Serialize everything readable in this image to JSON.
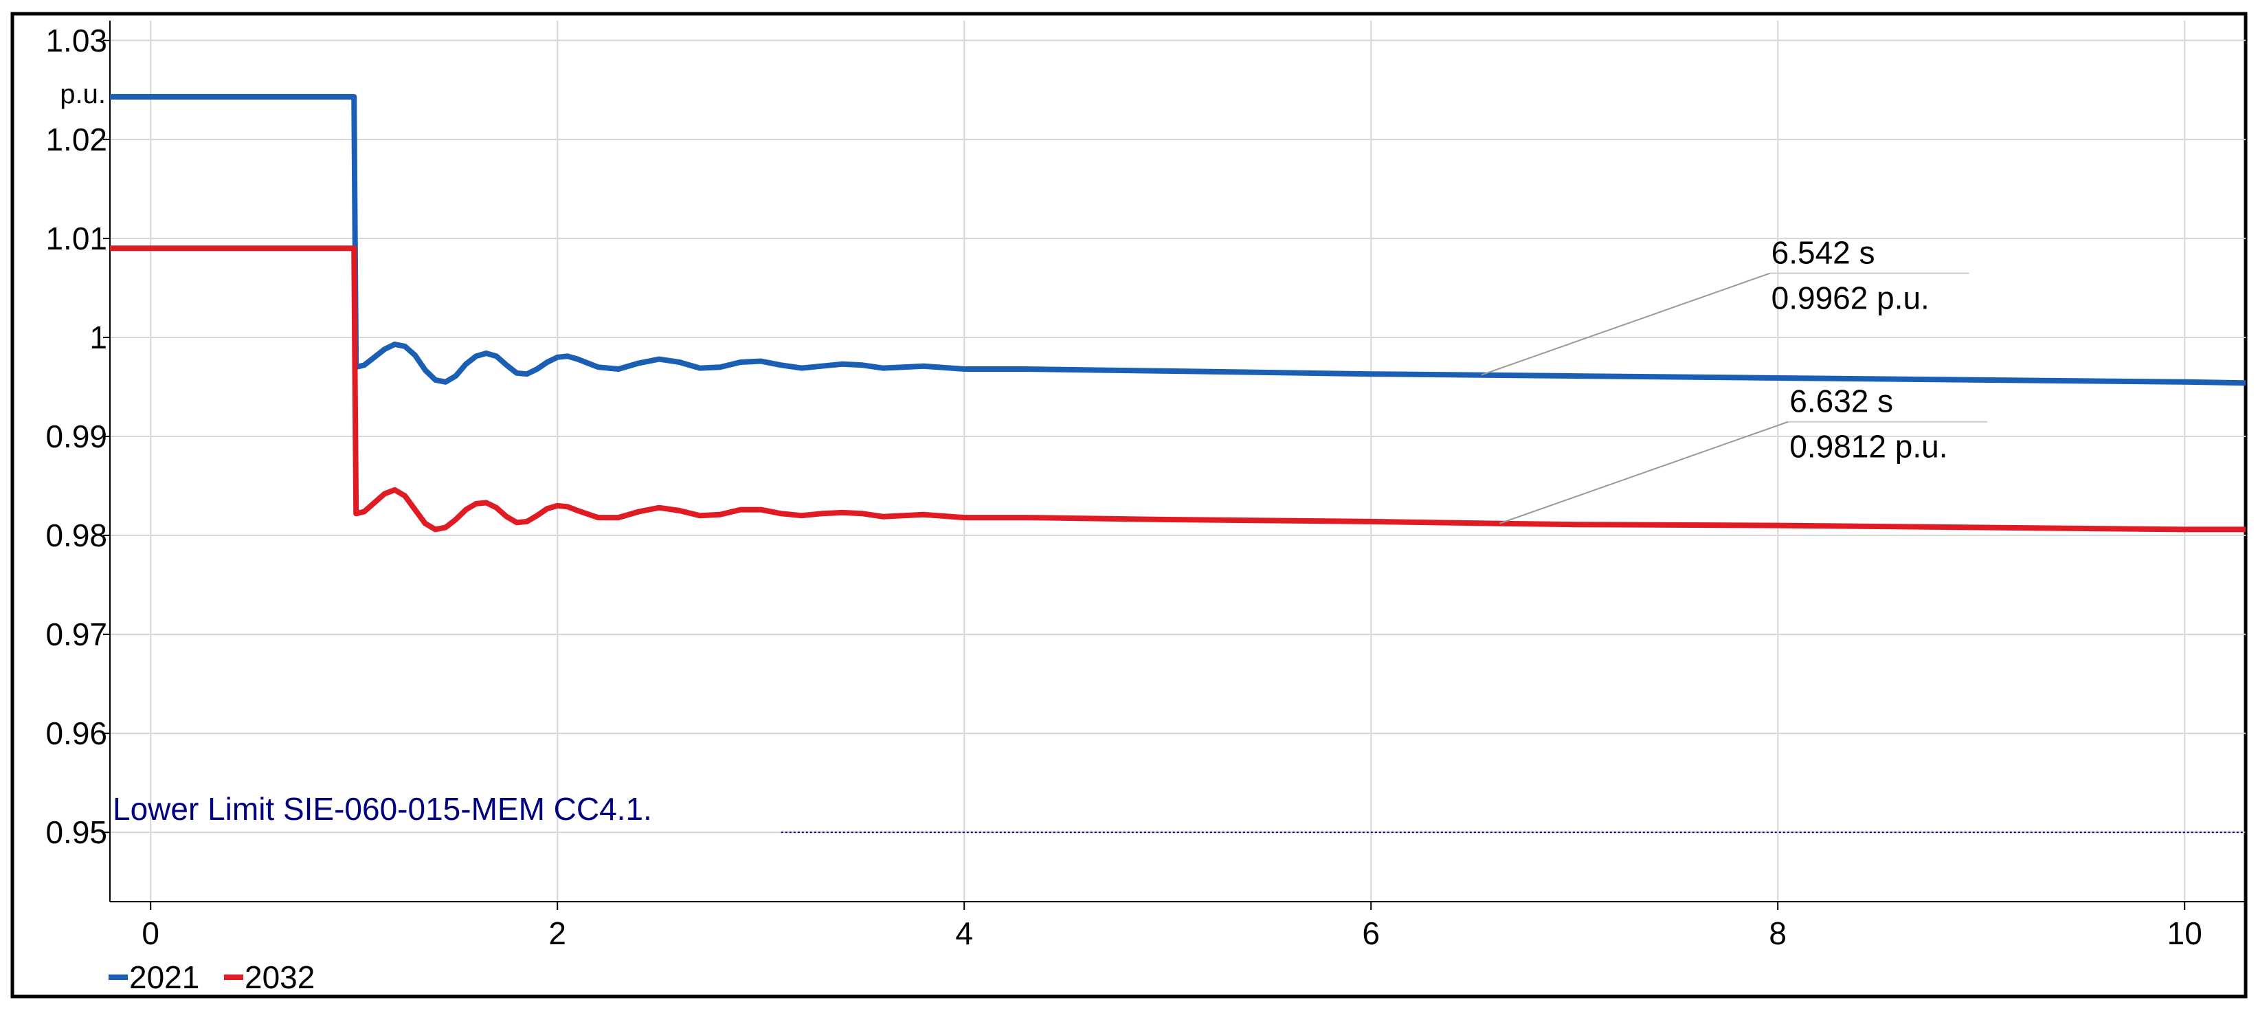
{
  "chart_data": {
    "type": "line",
    "title": "",
    "xlabel": "",
    "ylabel": "p.u.",
    "xlim": [
      -0.2,
      10.3
    ],
    "ylim": [
      0.943,
      1.032
    ],
    "x_ticks": [
      "0",
      "2",
      "4",
      "6",
      "8",
      "10"
    ],
    "x_tick_values": [
      0,
      2,
      4,
      6,
      8,
      10
    ],
    "y_ticks": [
      "0.95",
      "0.96",
      "0.97",
      "0.98",
      "0.99",
      "1",
      "1.01",
      "1.02",
      "1.03"
    ],
    "y_tick_values": [
      0.95,
      0.96,
      0.97,
      0.98,
      0.99,
      1.0,
      1.01,
      1.02,
      1.03
    ],
    "grid": true,
    "legend_position": "bottom-left",
    "series": [
      {
        "name": "2021",
        "color": "#1a5fb4",
        "points": [
          [
            -0.2,
            1.0243
          ],
          [
            0.999,
            1.0243
          ],
          [
            1.0,
            1.0243
          ],
          [
            1.005,
            1.01
          ],
          [
            1.01,
            0.997
          ],
          [
            1.05,
            0.9972
          ],
          [
            1.1,
            0.998
          ],
          [
            1.15,
            0.9988
          ],
          [
            1.2,
            0.9993
          ],
          [
            1.25,
            0.9991
          ],
          [
            1.3,
            0.9982
          ],
          [
            1.35,
            0.9967
          ],
          [
            1.4,
            0.9957
          ],
          [
            1.45,
            0.9955
          ],
          [
            1.5,
            0.9961
          ],
          [
            1.55,
            0.9973
          ],
          [
            1.6,
            0.9981
          ],
          [
            1.65,
            0.9984
          ],
          [
            1.7,
            0.9981
          ],
          [
            1.75,
            0.9972
          ],
          [
            1.8,
            0.9964
          ],
          [
            1.85,
            0.9963
          ],
          [
            1.9,
            0.9968
          ],
          [
            1.95,
            0.9975
          ],
          [
            2.0,
            0.998
          ],
          [
            2.05,
            0.9981
          ],
          [
            2.1,
            0.9978
          ],
          [
            2.2,
            0.997
          ],
          [
            2.3,
            0.9968
          ],
          [
            2.4,
            0.9974
          ],
          [
            2.5,
            0.9978
          ],
          [
            2.6,
            0.9975
          ],
          [
            2.7,
            0.9969
          ],
          [
            2.8,
            0.997
          ],
          [
            2.9,
            0.9975
          ],
          [
            3.0,
            0.9976
          ],
          [
            3.1,
            0.9972
          ],
          [
            3.2,
            0.9969
          ],
          [
            3.3,
            0.9971
          ],
          [
            3.4,
            0.9973
          ],
          [
            3.5,
            0.9972
          ],
          [
            3.6,
            0.9969
          ],
          [
            3.7,
            0.997
          ],
          [
            3.8,
            0.9971
          ],
          [
            4.0,
            0.9968
          ],
          [
            4.3,
            0.9968
          ],
          [
            5.0,
            0.9966
          ],
          [
            6.0,
            0.9963
          ],
          [
            6.542,
            0.9962
          ],
          [
            7.0,
            0.9961
          ],
          [
            8.0,
            0.9959
          ],
          [
            9.0,
            0.9957
          ],
          [
            10.0,
            0.9955
          ],
          [
            10.3,
            0.9954
          ]
        ]
      },
      {
        "name": "2032",
        "color": "#e01b24",
        "points": [
          [
            -0.2,
            1.009
          ],
          [
            0.999,
            1.009
          ],
          [
            1.0,
            1.009
          ],
          [
            1.005,
            0.995
          ],
          [
            1.01,
            0.9822
          ],
          [
            1.05,
            0.9824
          ],
          [
            1.1,
            0.9833
          ],
          [
            1.15,
            0.9842
          ],
          [
            1.2,
            0.9846
          ],
          [
            1.25,
            0.984
          ],
          [
            1.3,
            0.9826
          ],
          [
            1.35,
            0.9812
          ],
          [
            1.4,
            0.9806
          ],
          [
            1.45,
            0.9808
          ],
          [
            1.5,
            0.9816
          ],
          [
            1.55,
            0.9826
          ],
          [
            1.6,
            0.9832
          ],
          [
            1.65,
            0.9833
          ],
          [
            1.7,
            0.9828
          ],
          [
            1.75,
            0.9819
          ],
          [
            1.8,
            0.9813
          ],
          [
            1.85,
            0.9814
          ],
          [
            1.9,
            0.982
          ],
          [
            1.95,
            0.9827
          ],
          [
            2.0,
            0.983
          ],
          [
            2.05,
            0.9829
          ],
          [
            2.1,
            0.9825
          ],
          [
            2.2,
            0.9818
          ],
          [
            2.3,
            0.9818
          ],
          [
            2.4,
            0.9824
          ],
          [
            2.5,
            0.9828
          ],
          [
            2.6,
            0.9825
          ],
          [
            2.7,
            0.982
          ],
          [
            2.8,
            0.9821
          ],
          [
            2.9,
            0.9826
          ],
          [
            3.0,
            0.9826
          ],
          [
            3.1,
            0.9822
          ],
          [
            3.2,
            0.982
          ],
          [
            3.3,
            0.9822
          ],
          [
            3.4,
            0.9823
          ],
          [
            3.5,
            0.9822
          ],
          [
            3.6,
            0.9819
          ],
          [
            3.7,
            0.982
          ],
          [
            3.8,
            0.9821
          ],
          [
            4.0,
            0.9818
          ],
          [
            4.3,
            0.9818
          ],
          [
            5.0,
            0.9816
          ],
          [
            6.0,
            0.9814
          ],
          [
            6.632,
            0.9812
          ],
          [
            7.0,
            0.9811
          ],
          [
            8.0,
            0.981
          ],
          [
            9.0,
            0.9808
          ],
          [
            10.0,
            0.9806
          ],
          [
            10.3,
            0.9806
          ]
        ]
      }
    ],
    "reference_lines": [
      {
        "label": "Lower Limit SIE-060-015-MEM CC4.1.",
        "y": 0.95,
        "x_start": 3.1,
        "color": "#000080"
      }
    ],
    "annotations": [
      {
        "series": "2021",
        "x": 6.542,
        "y": 0.9962,
        "line1": "6.542 s",
        "line2": "0.9962 p.u."
      },
      {
        "series": "2032",
        "x": 6.632,
        "y": 0.9812,
        "line1": "6.632 s",
        "line2": "0.9812 p.u."
      }
    ]
  }
}
